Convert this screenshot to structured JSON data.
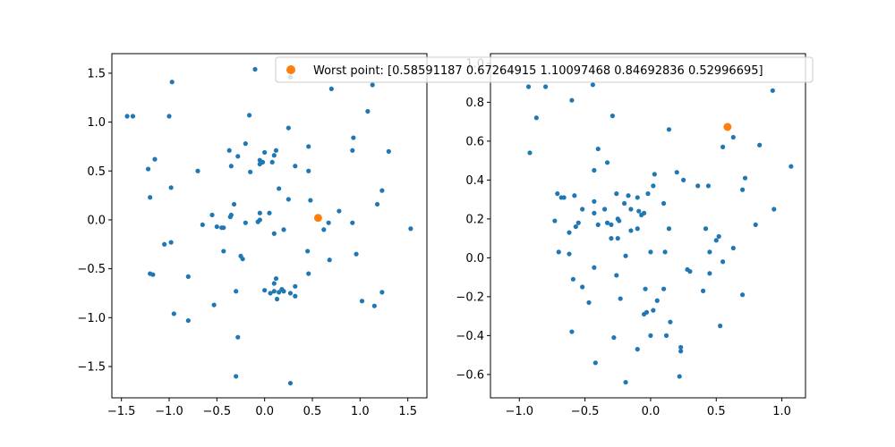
{
  "chart_data": [
    {
      "type": "scatter",
      "xlim": [
        -1.6,
        1.7
      ],
      "ylim": [
        -1.82,
        1.7
      ],
      "xticks": [
        -1.5,
        -1.0,
        -0.5,
        0.0,
        0.5,
        1.0,
        1.5
      ],
      "yticks": [
        -1.5,
        -1.0,
        -0.5,
        0.0,
        0.5,
        1.0,
        1.5
      ],
      "xtick_labels": [
        "−1.5",
        "−1.0",
        "−0.5",
        "0.0",
        "0.5",
        "1.0",
        "1.5"
      ],
      "ytick_labels": [
        "−1.5",
        "−1.0",
        "−0.5",
        "0.0",
        "0.5",
        "1.0",
        "1.5"
      ],
      "grid": false,
      "series": [
        {
          "color": "#1f77b4",
          "points": [
            [
              -1.38,
              1.06
            ],
            [
              -1.44,
              1.06
            ],
            [
              -1.22,
              0.52
            ],
            [
              -1.15,
              0.62
            ],
            [
              -1.2,
              0.23
            ],
            [
              -1.05,
              -0.25
            ],
            [
              -0.98,
              -0.23
            ],
            [
              -1.2,
              -0.55
            ],
            [
              -1.17,
              -0.56
            ],
            [
              -0.97,
              1.41
            ],
            [
              -0.98,
              0.33
            ],
            [
              -1.0,
              1.06
            ],
            [
              -0.95,
              -0.96
            ],
            [
              -0.8,
              -0.58
            ],
            [
              -0.8,
              -1.03
            ],
            [
              -0.7,
              0.5
            ],
            [
              -0.65,
              -0.05
            ],
            [
              -0.55,
              0.05
            ],
            [
              -0.5,
              -0.07
            ],
            [
              -0.45,
              -0.08
            ],
            [
              -0.43,
              -0.08
            ],
            [
              -0.43,
              -0.32
            ],
            [
              -0.53,
              -0.87
            ],
            [
              -0.36,
              0.03
            ],
            [
              -0.35,
              0.05
            ],
            [
              -0.37,
              0.71
            ],
            [
              -0.35,
              0.55
            ],
            [
              -0.28,
              0.65
            ],
            [
              -0.32,
              0.16
            ],
            [
              -0.3,
              -0.73
            ],
            [
              -0.28,
              -1.2
            ],
            [
              -0.3,
              -1.6
            ],
            [
              -0.23,
              -0.4
            ],
            [
              -0.25,
              -0.37
            ],
            [
              -0.2,
              -0.03
            ],
            [
              -0.2,
              0.78
            ],
            [
              -0.16,
              1.07
            ],
            [
              -0.15,
              0.49
            ],
            [
              -0.1,
              1.54
            ],
            [
              -0.05,
              0.61
            ],
            [
              -0.05,
              0.57
            ],
            [
              -0.02,
              0.59
            ],
            [
              0.0,
              0.69
            ],
            [
              -0.07,
              -0.02
            ],
            [
              -0.05,
              0.0
            ],
            [
              -0.05,
              0.07
            ],
            [
              0.05,
              0.07
            ],
            [
              0.0,
              -0.72
            ],
            [
              0.06,
              -0.75
            ],
            [
              0.1,
              -0.73
            ],
            [
              0.13,
              -0.81
            ],
            [
              0.15,
              -0.74
            ],
            [
              0.1,
              -0.65
            ],
            [
              0.12,
              -0.6
            ],
            [
              0.18,
              -0.71
            ],
            [
              0.2,
              -0.73
            ],
            [
              0.27,
              -0.75
            ],
            [
              0.32,
              -0.68
            ],
            [
              0.32,
              -0.78
            ],
            [
              0.1,
              0.66
            ],
            [
              0.12,
              0.71
            ],
            [
              0.08,
              0.59
            ],
            [
              0.15,
              0.32
            ],
            [
              0.2,
              -0.1
            ],
            [
              0.1,
              -0.14
            ],
            [
              0.25,
              0.21
            ],
            [
              0.32,
              0.55
            ],
            [
              0.25,
              0.94
            ],
            [
              0.27,
              1.46
            ],
            [
              0.46,
              0.75
            ],
            [
              0.46,
              0.5
            ],
            [
              0.48,
              0.2
            ],
            [
              0.45,
              -0.32
            ],
            [
              0.46,
              -0.55
            ],
            [
              0.62,
              -0.1
            ],
            [
              0.67,
              -0.03
            ],
            [
              0.7,
              1.34
            ],
            [
              0.68,
              -0.41
            ],
            [
              0.78,
              0.09
            ],
            [
              0.92,
              0.71
            ],
            [
              0.93,
              0.84
            ],
            [
              0.92,
              -0.03
            ],
            [
              0.96,
              -0.35
            ],
            [
              1.02,
              -0.83
            ],
            [
              1.08,
              1.11
            ],
            [
              1.13,
              1.38
            ],
            [
              1.15,
              -0.88
            ],
            [
              1.18,
              0.16
            ],
            [
              1.23,
              -0.74
            ],
            [
              1.23,
              0.3
            ],
            [
              1.3,
              0.7
            ],
            [
              1.53,
              -0.09
            ],
            [
              0.27,
              -1.67
            ]
          ]
        },
        {
          "color": "#ff7f0e",
          "points": [
            [
              0.56,
              0.02
            ]
          ]
        }
      ]
    },
    {
      "type": "scatter",
      "xlim": [
        -1.22,
        1.18
      ],
      "ylim": [
        -0.72,
        1.05
      ],
      "xticks": [
        -1.0,
        -0.5,
        0.0,
        0.5,
        1.0
      ],
      "yticks": [
        -0.6,
        -0.4,
        -0.2,
        0.0,
        0.2,
        0.4,
        0.6,
        0.8,
        1.0
      ],
      "xtick_labels": [
        "−1.0",
        "−0.5",
        "0.0",
        "0.5",
        "1.0"
      ],
      "ytick_labels": [
        "−0.6",
        "−0.4",
        "−0.2",
        "0.0",
        "0.2",
        "0.4",
        "0.6",
        "0.8",
        "1.0"
      ],
      "grid": false,
      "legend": {
        "placement": "upper-right",
        "entries": [
          {
            "label": "Worst point: [0.58591187 0.67264915 1.10097468 0.84692836 0.52996695]",
            "color": "#ff7f0e"
          }
        ]
      },
      "series": [
        {
          "color": "#1f77b4",
          "points": [
            [
              -0.93,
              0.88
            ],
            [
              -0.8,
              0.88
            ],
            [
              -0.87,
              0.72
            ],
            [
              -0.92,
              0.54
            ],
            [
              -0.6,
              0.81
            ],
            [
              -0.44,
              0.89
            ],
            [
              -0.29,
              0.73
            ],
            [
              -0.4,
              0.56
            ],
            [
              -0.43,
              0.45
            ],
            [
              -0.33,
              0.49
            ],
            [
              -0.73,
              0.19
            ],
            [
              -0.71,
              0.33
            ],
            [
              -0.68,
              0.31
            ],
            [
              -0.66,
              0.31
            ],
            [
              -0.58,
              0.32
            ],
            [
              -0.52,
              0.25
            ],
            [
              -0.57,
              0.16
            ],
            [
              -0.55,
              0.18
            ],
            [
              -0.43,
              0.23
            ],
            [
              -0.43,
              0.29
            ],
            [
              -0.4,
              0.17
            ],
            [
              -0.35,
              0.25
            ],
            [
              -0.33,
              0.18
            ],
            [
              -0.3,
              0.17
            ],
            [
              -0.26,
              0.33
            ],
            [
              -0.25,
              0.2
            ],
            [
              -0.24,
              0.19
            ],
            [
              -0.2,
              0.28
            ],
            [
              -0.17,
              0.32
            ],
            [
              -0.15,
              0.25
            ],
            [
              -0.1,
              0.31
            ],
            [
              -0.09,
              0.24
            ],
            [
              -0.07,
              0.22
            ],
            [
              -0.05,
              0.23
            ],
            [
              -0.02,
              0.33
            ],
            [
              0.02,
              0.37
            ],
            [
              0.03,
              0.43
            ],
            [
              0.1,
              0.28
            ],
            [
              0.14,
              0.66
            ],
            [
              0.14,
              0.15
            ],
            [
              0.2,
              0.44
            ],
            [
              0.25,
              0.4
            ],
            [
              0.36,
              0.37
            ],
            [
              0.44,
              0.37
            ],
            [
              0.55,
              0.57
            ],
            [
              0.63,
              0.62
            ],
            [
              0.7,
              0.35
            ],
            [
              0.72,
              0.41
            ],
            [
              0.8,
              0.17
            ],
            [
              0.83,
              0.58
            ],
            [
              0.93,
              0.86
            ],
            [
              0.94,
              0.25
            ],
            [
              1.07,
              0.47
            ],
            [
              -0.7,
              0.03
            ],
            [
              -0.62,
              0.02
            ],
            [
              -0.62,
              0.13
            ],
            [
              -0.59,
              -0.11
            ],
            [
              -0.52,
              -0.15
            ],
            [
              -0.47,
              -0.23
            ],
            [
              -0.43,
              -0.05
            ],
            [
              -0.3,
              0.1
            ],
            [
              -0.25,
              0.1
            ],
            [
              -0.26,
              -0.09
            ],
            [
              -0.23,
              -0.21
            ],
            [
              -0.19,
              0.01
            ],
            [
              -0.15,
              0.14
            ],
            [
              -0.1,
              0.15
            ],
            [
              -0.04,
              -0.16
            ],
            [
              -0.05,
              -0.29
            ],
            [
              -0.03,
              -0.28
            ],
            [
              0.0,
              0.03
            ],
            [
              0.02,
              -0.27
            ],
            [
              0.05,
              -0.22
            ],
            [
              0.1,
              -0.16
            ],
            [
              0.11,
              0.03
            ],
            [
              0.15,
              -0.33
            ],
            [
              0.23,
              -0.46
            ],
            [
              0.23,
              -0.48
            ],
            [
              0.28,
              -0.06
            ],
            [
              0.3,
              -0.07
            ],
            [
              0.4,
              -0.17
            ],
            [
              0.42,
              0.15
            ],
            [
              0.45,
              0.03
            ],
            [
              0.45,
              -0.08
            ],
            [
              0.5,
              0.09
            ],
            [
              0.52,
              0.11
            ],
            [
              0.55,
              -0.02
            ],
            [
              0.63,
              0.05
            ],
            [
              0.7,
              -0.19
            ],
            [
              0.53,
              -0.35
            ],
            [
              -0.6,
              -0.38
            ],
            [
              -0.42,
              -0.54
            ],
            [
              -0.28,
              -0.41
            ],
            [
              -0.19,
              -0.64
            ],
            [
              -0.1,
              -0.47
            ],
            [
              0.0,
              -0.4
            ],
            [
              0.12,
              -0.4
            ],
            [
              0.22,
              -0.61
            ]
          ]
        },
        {
          "color": "#ff7f0e",
          "points": [
            [
              0.586,
              0.673
            ]
          ]
        }
      ]
    }
  ]
}
